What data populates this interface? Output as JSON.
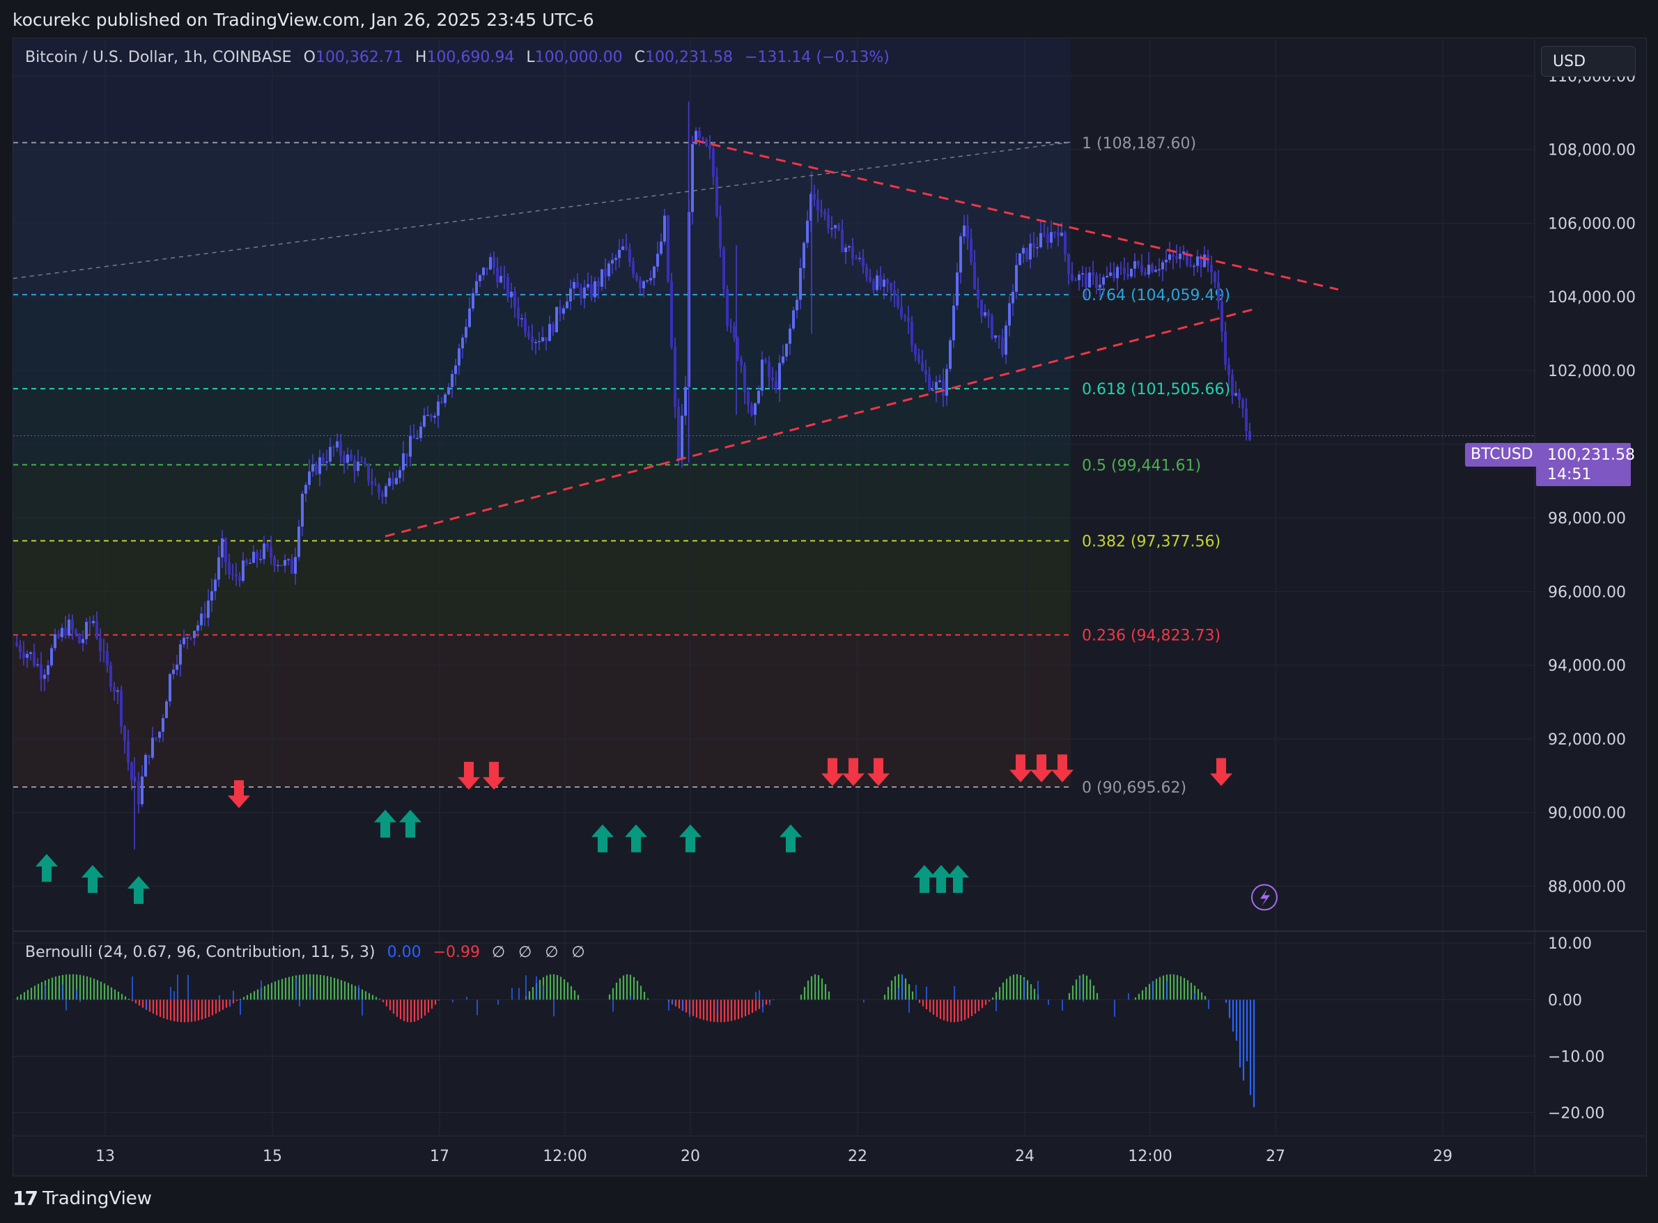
{
  "header": {
    "publisher_line": "kocurekc published on TradingView.com, Jan 26, 2025 23:45 UTC-6"
  },
  "legend": {
    "symbol": "Bitcoin / U.S. Dollar, 1h, COINBASE",
    "o_label": "O",
    "o_value": "100,362.71",
    "h_label": "H",
    "h_value": "100,690.94",
    "l_label": "L",
    "l_value": "100,000.00",
    "c_label": "C",
    "c_value": "100,231.58",
    "change": "−131.14 (−0.13%)"
  },
  "currency_button": "USD",
  "last_price": {
    "ticker": "BTCUSD",
    "price": "100,231.58",
    "countdown": "14:51"
  },
  "indicator": {
    "title": "Bernoulli (24, 0.67, 96, Contribution, 11, 5, 3)",
    "val1": "0.00",
    "val2": "−0.99",
    "empties": "∅ ∅ ∅ ∅"
  },
  "footer": {
    "brand": "TradingView"
  },
  "colors": {
    "background": "#181b26",
    "candle": "#4a3fd0",
    "bull_arrow": "#089981",
    "bear_arrow": "#f23645",
    "trendline": "#f23645",
    "price_badge": "#7e57c2"
  },
  "chart_data": {
    "type": "candlestick",
    "interval": "1h",
    "ylim": [
      86800,
      111000
    ],
    "y_ticks": [
      88000,
      90000,
      92000,
      94000,
      96000,
      98000,
      100000,
      102000,
      104000,
      106000,
      108000,
      110000
    ],
    "y_tick_labels": [
      "88,000.00",
      "90,000.00",
      "92,000.00",
      "94,000.00",
      "96,000.00",
      "98,000.00",
      "",
      "102,000.00",
      "104,000.00",
      "106,000.00",
      "108,000.00",
      "110,000.00"
    ],
    "x_ticks": [
      "13",
      "15",
      "17",
      "12:00",
      "20",
      "22",
      "24",
      "12:00",
      "27",
      "29"
    ],
    "x_tick_days": [
      13,
      15,
      17,
      18.5,
      20,
      22,
      24,
      25.5,
      27,
      29
    ],
    "x_range_days": [
      11.9,
      30.1
    ],
    "price_path": [
      [
        11.9,
        94600
      ],
      [
        12.1,
        94300
      ],
      [
        12.25,
        93800
      ],
      [
        12.4,
        94600
      ],
      [
        12.55,
        95100
      ],
      [
        12.7,
        94600
      ],
      [
        12.85,
        95300
      ],
      [
        13.0,
        94000
      ],
      [
        13.15,
        93200
      ],
      [
        13.3,
        91000
      ],
      [
        13.4,
        90400
      ],
      [
        13.5,
        91600
      ],
      [
        13.65,
        92200
      ],
      [
        13.8,
        94000
      ],
      [
        14.0,
        94900
      ],
      [
        14.15,
        95200
      ],
      [
        14.3,
        96200
      ],
      [
        14.4,
        97200
      ],
      [
        14.5,
        96300
      ],
      [
        14.7,
        96700
      ],
      [
        14.9,
        97100
      ],
      [
        15.1,
        96800
      ],
      [
        15.25,
        96600
      ],
      [
        15.35,
        98700
      ],
      [
        15.55,
        99500
      ],
      [
        15.75,
        99900
      ],
      [
        15.95,
        99500
      ],
      [
        16.1,
        99300
      ],
      [
        16.3,
        98600
      ],
      [
        16.45,
        99200
      ],
      [
        16.6,
        99800
      ],
      [
        16.8,
        100500
      ],
      [
        17.0,
        101200
      ],
      [
        17.2,
        102200
      ],
      [
        17.4,
        104100
      ],
      [
        17.6,
        105000
      ],
      [
        17.8,
        104200
      ],
      [
        18.0,
        103300
      ],
      [
        18.15,
        102900
      ],
      [
        18.3,
        103000
      ],
      [
        18.55,
        104200
      ],
      [
        18.8,
        104100
      ],
      [
        19.0,
        104700
      ],
      [
        19.2,
        105300
      ],
      [
        19.4,
        104400
      ],
      [
        19.6,
        104900
      ],
      [
        19.7,
        106100
      ],
      [
        19.75,
        103600
      ],
      [
        19.85,
        99500
      ],
      [
        19.95,
        101800
      ],
      [
        20.0,
        108400
      ],
      [
        20.1,
        108200
      ],
      [
        20.25,
        107800
      ],
      [
        20.35,
        105700
      ],
      [
        20.45,
        103200
      ],
      [
        20.6,
        102300
      ],
      [
        20.75,
        100400
      ],
      [
        20.85,
        102300
      ],
      [
        21.0,
        101500
      ],
      [
        21.15,
        102600
      ],
      [
        21.3,
        104400
      ],
      [
        21.45,
        106900
      ],
      [
        21.6,
        106200
      ],
      [
        21.8,
        105500
      ],
      [
        22.0,
        105000
      ],
      [
        22.2,
        104400
      ],
      [
        22.4,
        104100
      ],
      [
        22.6,
        103400
      ],
      [
        22.75,
        102000
      ],
      [
        22.9,
        101600
      ],
      [
        23.05,
        101500
      ],
      [
        23.15,
        103800
      ],
      [
        23.25,
        106300
      ],
      [
        23.4,
        104200
      ],
      [
        23.55,
        103300
      ],
      [
        23.75,
        102600
      ],
      [
        23.9,
        104900
      ],
      [
        24.1,
        105400
      ],
      [
        24.25,
        105600
      ],
      [
        24.4,
        105900
      ],
      [
        24.55,
        104600
      ],
      [
        24.8,
        104400
      ],
      [
        25.0,
        104500
      ],
      [
        25.3,
        104800
      ],
      [
        25.6,
        104900
      ],
      [
        25.9,
        105100
      ],
      [
        26.1,
        105000
      ],
      [
        26.25,
        104800
      ],
      [
        26.45,
        101600
      ],
      [
        26.6,
        100900
      ],
      [
        26.7,
        100300
      ]
    ],
    "fib_levels": [
      {
        "ratio": "1",
        "price": 108187.6,
        "label": "1 (108,187.60)",
        "color": "#9598a1"
      },
      {
        "ratio": "0.764",
        "price": 104059.49,
        "label": "0.764 (104,059.49)",
        "color": "#2ea3db"
      },
      {
        "ratio": "0.618",
        "price": 101505.66,
        "label": "0.618 (101,505.66)",
        "color": "#1fd3b0"
      },
      {
        "ratio": "0.5",
        "price": 99441.61,
        "label": "0.5 (99,441.61)",
        "color": "#4caf50"
      },
      {
        "ratio": "0.382",
        "price": 97377.56,
        "label": "0.382 (97,377.56)",
        "color": "#c5d42b"
      },
      {
        "ratio": "0.236",
        "price": 94823.73,
        "label": "0.236 (94,823.73)",
        "color": "#f23645"
      },
      {
        "ratio": "0",
        "price": 90695.62,
        "label": "0 (90,695.62)",
        "color": "#9598a1"
      }
    ],
    "fib_range_days": [
      11.9,
      24.55
    ],
    "trendlines": [
      {
        "style": "dash-red",
        "from": [
          16.35,
          97500
        ],
        "to": [
          26.8,
          103700
        ]
      },
      {
        "style": "dash-red",
        "from": [
          20.05,
          108250
        ],
        "to": [
          27.75,
          104200
        ]
      },
      {
        "style": "dash-gray",
        "from": [
          11.9,
          104500
        ],
        "to": [
          24.55,
          108200
        ]
      }
    ],
    "bull_signals": [
      [
        12.3,
        88500
      ],
      [
        12.85,
        88200
      ],
      [
        13.4,
        87900
      ],
      [
        16.35,
        89700
      ],
      [
        16.65,
        89700
      ],
      [
        18.95,
        89300
      ],
      [
        19.35,
        89300
      ],
      [
        20.0,
        89300
      ],
      [
        21.2,
        89300
      ],
      [
        22.8,
        88200
      ],
      [
        23.0,
        88200
      ],
      [
        23.2,
        88200
      ]
    ],
    "bear_signals": [
      [
        14.6,
        90500
      ],
      [
        17.35,
        91000
      ],
      [
        17.65,
        91000
      ],
      [
        21.7,
        91100
      ],
      [
        21.95,
        91100
      ],
      [
        22.25,
        91100
      ],
      [
        23.95,
        91200
      ],
      [
        24.2,
        91200
      ],
      [
        24.45,
        91200
      ],
      [
        26.35,
        91100
      ]
    ],
    "last_price_value": 100231.58,
    "indicator": {
      "name": "Bernoulli",
      "ylim": [
        -24,
        12
      ],
      "y_ticks": [
        10,
        0,
        -10,
        -20
      ],
      "y_tick_labels": [
        "10.00",
        "0.00",
        "−10.00",
        "−20.00"
      ]
    }
  }
}
